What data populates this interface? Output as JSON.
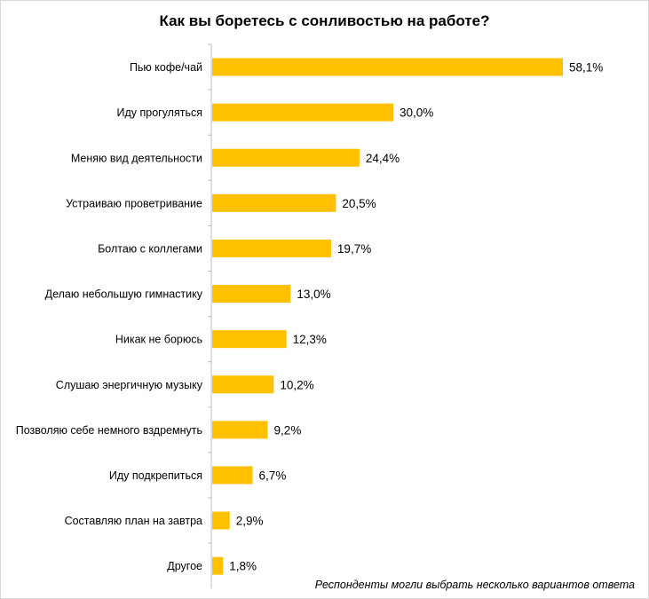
{
  "chart_data": {
    "type": "bar",
    "orientation": "horizontal",
    "title": "Как вы боретесь с сонливостью на работе?",
    "categories": [
      "Пью кофе/чай",
      "Иду прогуляться",
      "Меняю вид деятельности",
      "Устраиваю проветривание",
      "Болтаю с коллегами",
      "Делаю небольшую гимнастику",
      "Никак не борюсь",
      "Слушаю энергичную музыку",
      "Позволяю себе немного вздремнуть",
      "Иду подкрепиться",
      "Составляю план на завтра",
      "Другое"
    ],
    "values": [
      58.1,
      30.0,
      24.4,
      20.5,
      19.7,
      13.0,
      12.3,
      10.2,
      9.2,
      6.7,
      2.9,
      1.8
    ],
    "value_labels": [
      "58,1%",
      "30,0%",
      "24,4%",
      "20,5%",
      "19,7%",
      "13,0%",
      "12,3%",
      "10,2%",
      "9,2%",
      "6,7%",
      "2,9%",
      "1,8%"
    ],
    "bar_color": "#FFC000",
    "grid": false,
    "legend": "none"
  },
  "footnote": "Респонденты могли выбрать несколько вариантов ответа"
}
